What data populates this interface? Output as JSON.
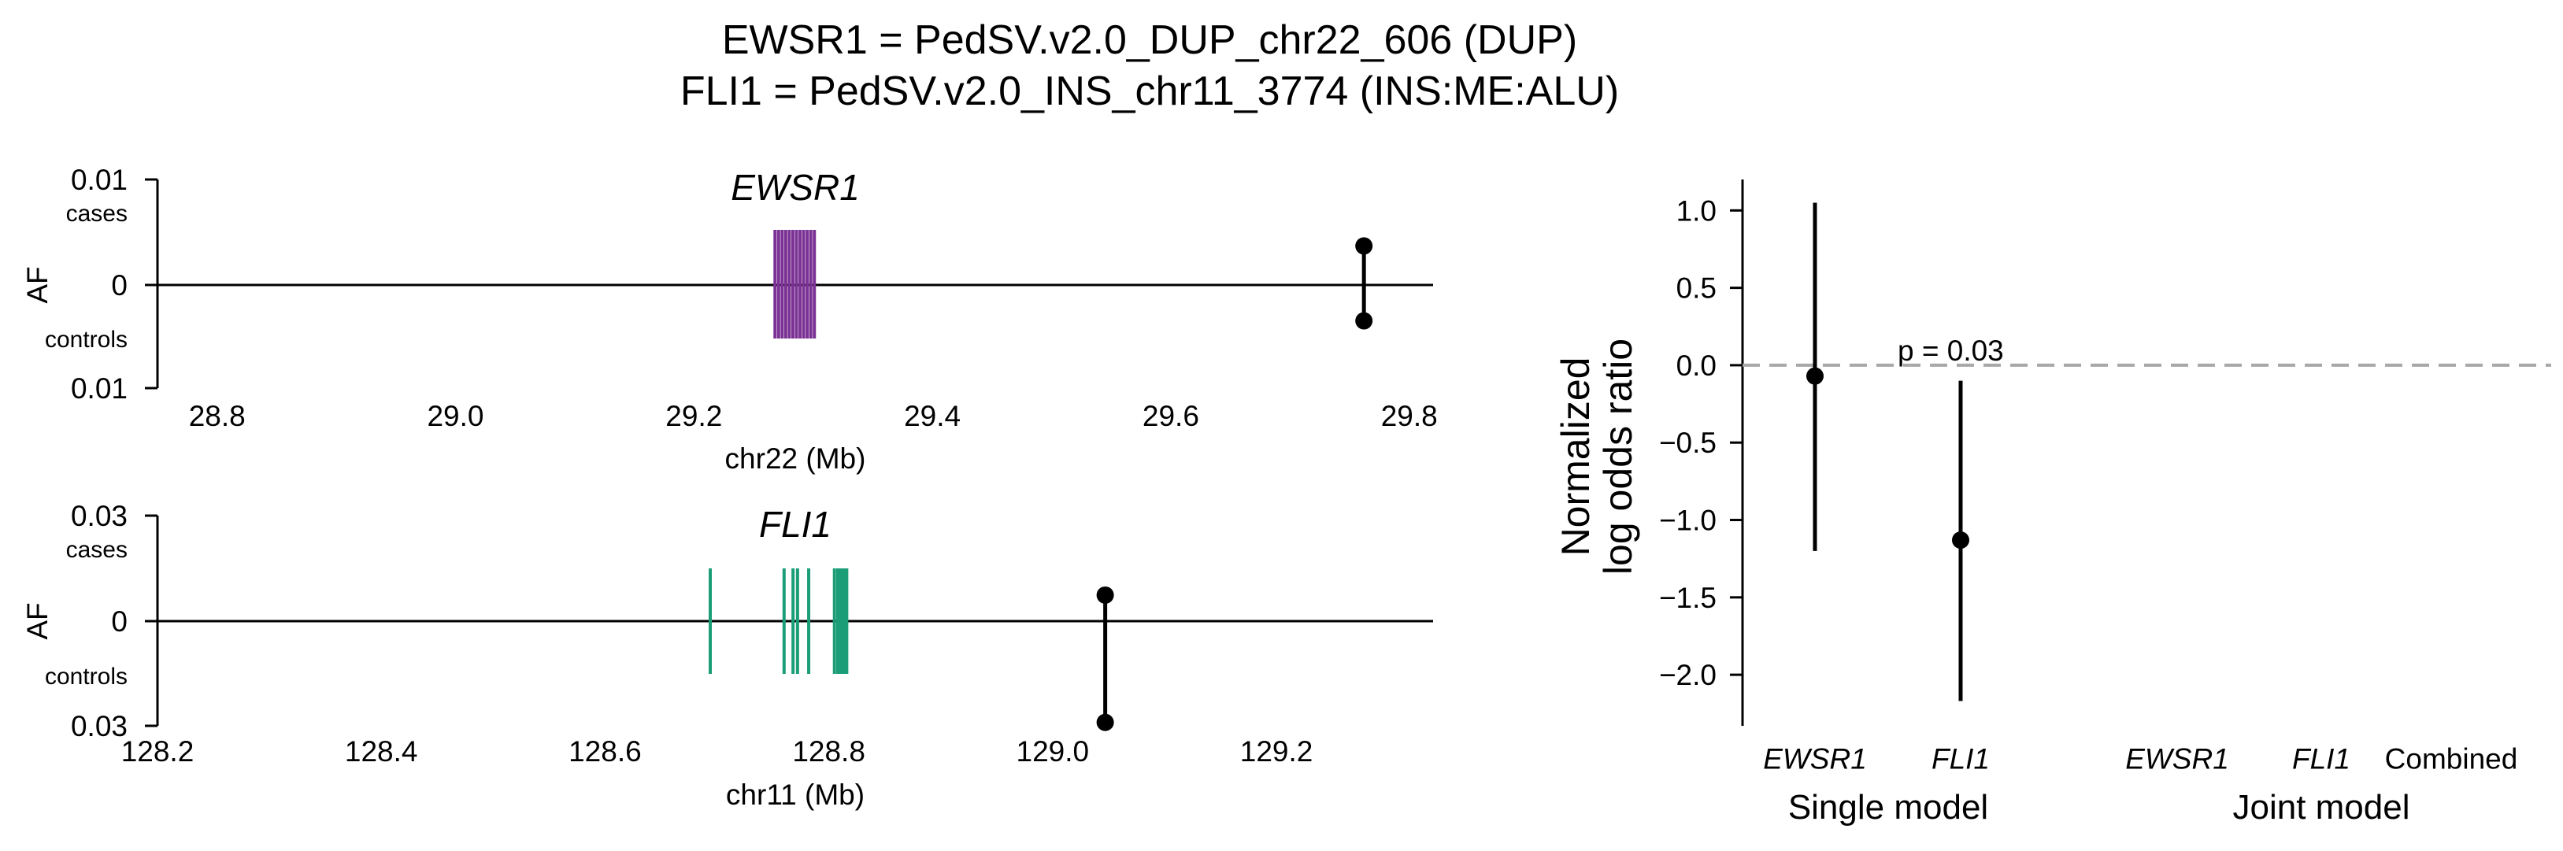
{
  "title": {
    "line1": "EWSR1 = PedSV.v2.0_DUP_chr22_606 (DUP)",
    "line2": "FLI1 = PedSV.v2.0_INS_chr11_3774 (INS:ME:ALU)"
  },
  "colors": {
    "ewsr1": "#7b3294",
    "fli1": "#1b9e77",
    "point": "#000000",
    "refline": "#a8a8a8"
  },
  "chart_data": [
    {
      "type": "scatter",
      "name": "ewsr1-locus",
      "gene": "EWSR1",
      "xlabel": "chr22 (Mb)",
      "ylabel": "AF",
      "xlim": [
        28.75,
        29.82
      ],
      "xticks": [
        28.8,
        29.0,
        29.2,
        29.4,
        29.6,
        29.8
      ],
      "xtick_labels": [
        "28.8",
        "29.0",
        "29.2",
        "29.4",
        "29.6",
        "29.8"
      ],
      "yticks": {
        "top": "0.01",
        "top_sub": "cases",
        "mid": "0",
        "bottom_sub": "controls",
        "bottom": "0.01"
      },
      "ylim": [
        -0.01,
        0.01
      ],
      "exons": [
        29.268,
        29.271,
        29.274,
        29.277,
        29.28,
        29.283,
        29.286,
        29.289,
        29.292,
        29.295,
        29.298,
        29.301
      ],
      "variant": {
        "x": 29.762,
        "cases_af": 0.0037,
        "controls_af": -0.0034
      }
    },
    {
      "type": "scatter",
      "name": "fli1-locus",
      "gene": "FLI1",
      "xlabel": "chr11 (Mb)",
      "ylabel": "AF",
      "xlim": [
        128.2,
        129.34
      ],
      "xticks": [
        128.2,
        128.4,
        128.6,
        128.8,
        129.0,
        129.2
      ],
      "xtick_labels": [
        "128.2",
        "128.4",
        "128.6",
        "128.8",
        "129.0",
        "129.2"
      ],
      "yticks": {
        "top": "0.03",
        "top_sub": "cases",
        "mid": "0",
        "bottom_sub": "controls",
        "bottom": "0.03"
      },
      "ylim": [
        -0.03,
        0.03
      ],
      "exons": [
        128.694,
        128.76,
        128.768,
        128.772,
        128.782,
        128.805,
        128.808,
        128.81,
        128.812,
        128.814,
        128.816
      ],
      "variant": {
        "x": 129.047,
        "cases_af": 0.0074,
        "controls_af": -0.0288
      }
    },
    {
      "type": "scatter",
      "name": "log-odds-ratio",
      "ylabel_lines": [
        "Normalized",
        "log odds ratio"
      ],
      "ylim": [
        -2.33,
        1.2
      ],
      "yticks": [
        1.0,
        0.5,
        0.0,
        -0.5,
        -1.0,
        -1.5,
        -2.0
      ],
      "ytick_labels": [
        "1.0",
        "0.5",
        "0.0",
        "−0.5",
        "−1.0",
        "−1.5",
        "−2.0"
      ],
      "categories": [
        "EWSR1",
        "FLI1",
        "EWSR1",
        "FLI1",
        "Combined"
      ],
      "groups": [
        "Single model",
        "Joint model"
      ],
      "estimates": [
        {
          "category": "EWSR1",
          "value": -0.07,
          "lower": -1.2,
          "upper": 1.05
        },
        {
          "category": "FLI1",
          "value": -1.13,
          "lower": -2.17,
          "upper": -0.1
        }
      ],
      "annotation": "p = 0.03",
      "refline_y": 0.0
    }
  ]
}
